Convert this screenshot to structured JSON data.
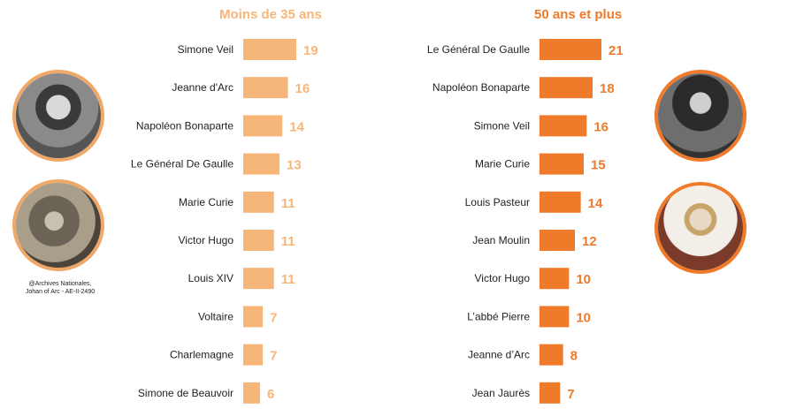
{
  "colors": {
    "left": "#f6b67a",
    "right": "#ef7a2a",
    "left_title": "#f6b67a",
    "right_title": "#ef7a2a"
  },
  "chart_data": [
    {
      "type": "bar",
      "orientation": "horizontal",
      "title": "Moins de 35 ans",
      "categories": [
        "Simone Veil",
        "Jeanne d'Arc",
        "Napoléon Bonaparte",
        "Le Général De Gaulle",
        "Marie Curie",
        "Victor Hugo",
        "Louis XIV",
        "Voltaire",
        "Charlemagne",
        "Simone de Beauvoir"
      ],
      "values": [
        19,
        16,
        14,
        13,
        11,
        11,
        11,
        7,
        7,
        6
      ],
      "xlim": [
        0,
        21
      ]
    },
    {
      "type": "bar",
      "orientation": "horizontal",
      "title": "50 ans et plus",
      "categories": [
        "Le Général De Gaulle",
        "Napoléon Bonaparte",
        "Simone Veil",
        "Marie Curie",
        "Louis Pasteur",
        "Jean Moulin",
        "Victor Hugo",
        "L’abbé Pierre",
        "Jeanne d’Arc",
        "Jean Jaurès"
      ],
      "values": [
        21,
        18,
        16,
        15,
        14,
        12,
        10,
        10,
        8,
        7
      ],
      "xlim": [
        0,
        21
      ]
    }
  ],
  "credit": {
    "line1": "@Archives Nationales,",
    "line2": "Johan of Arc - AE-II-2490"
  }
}
